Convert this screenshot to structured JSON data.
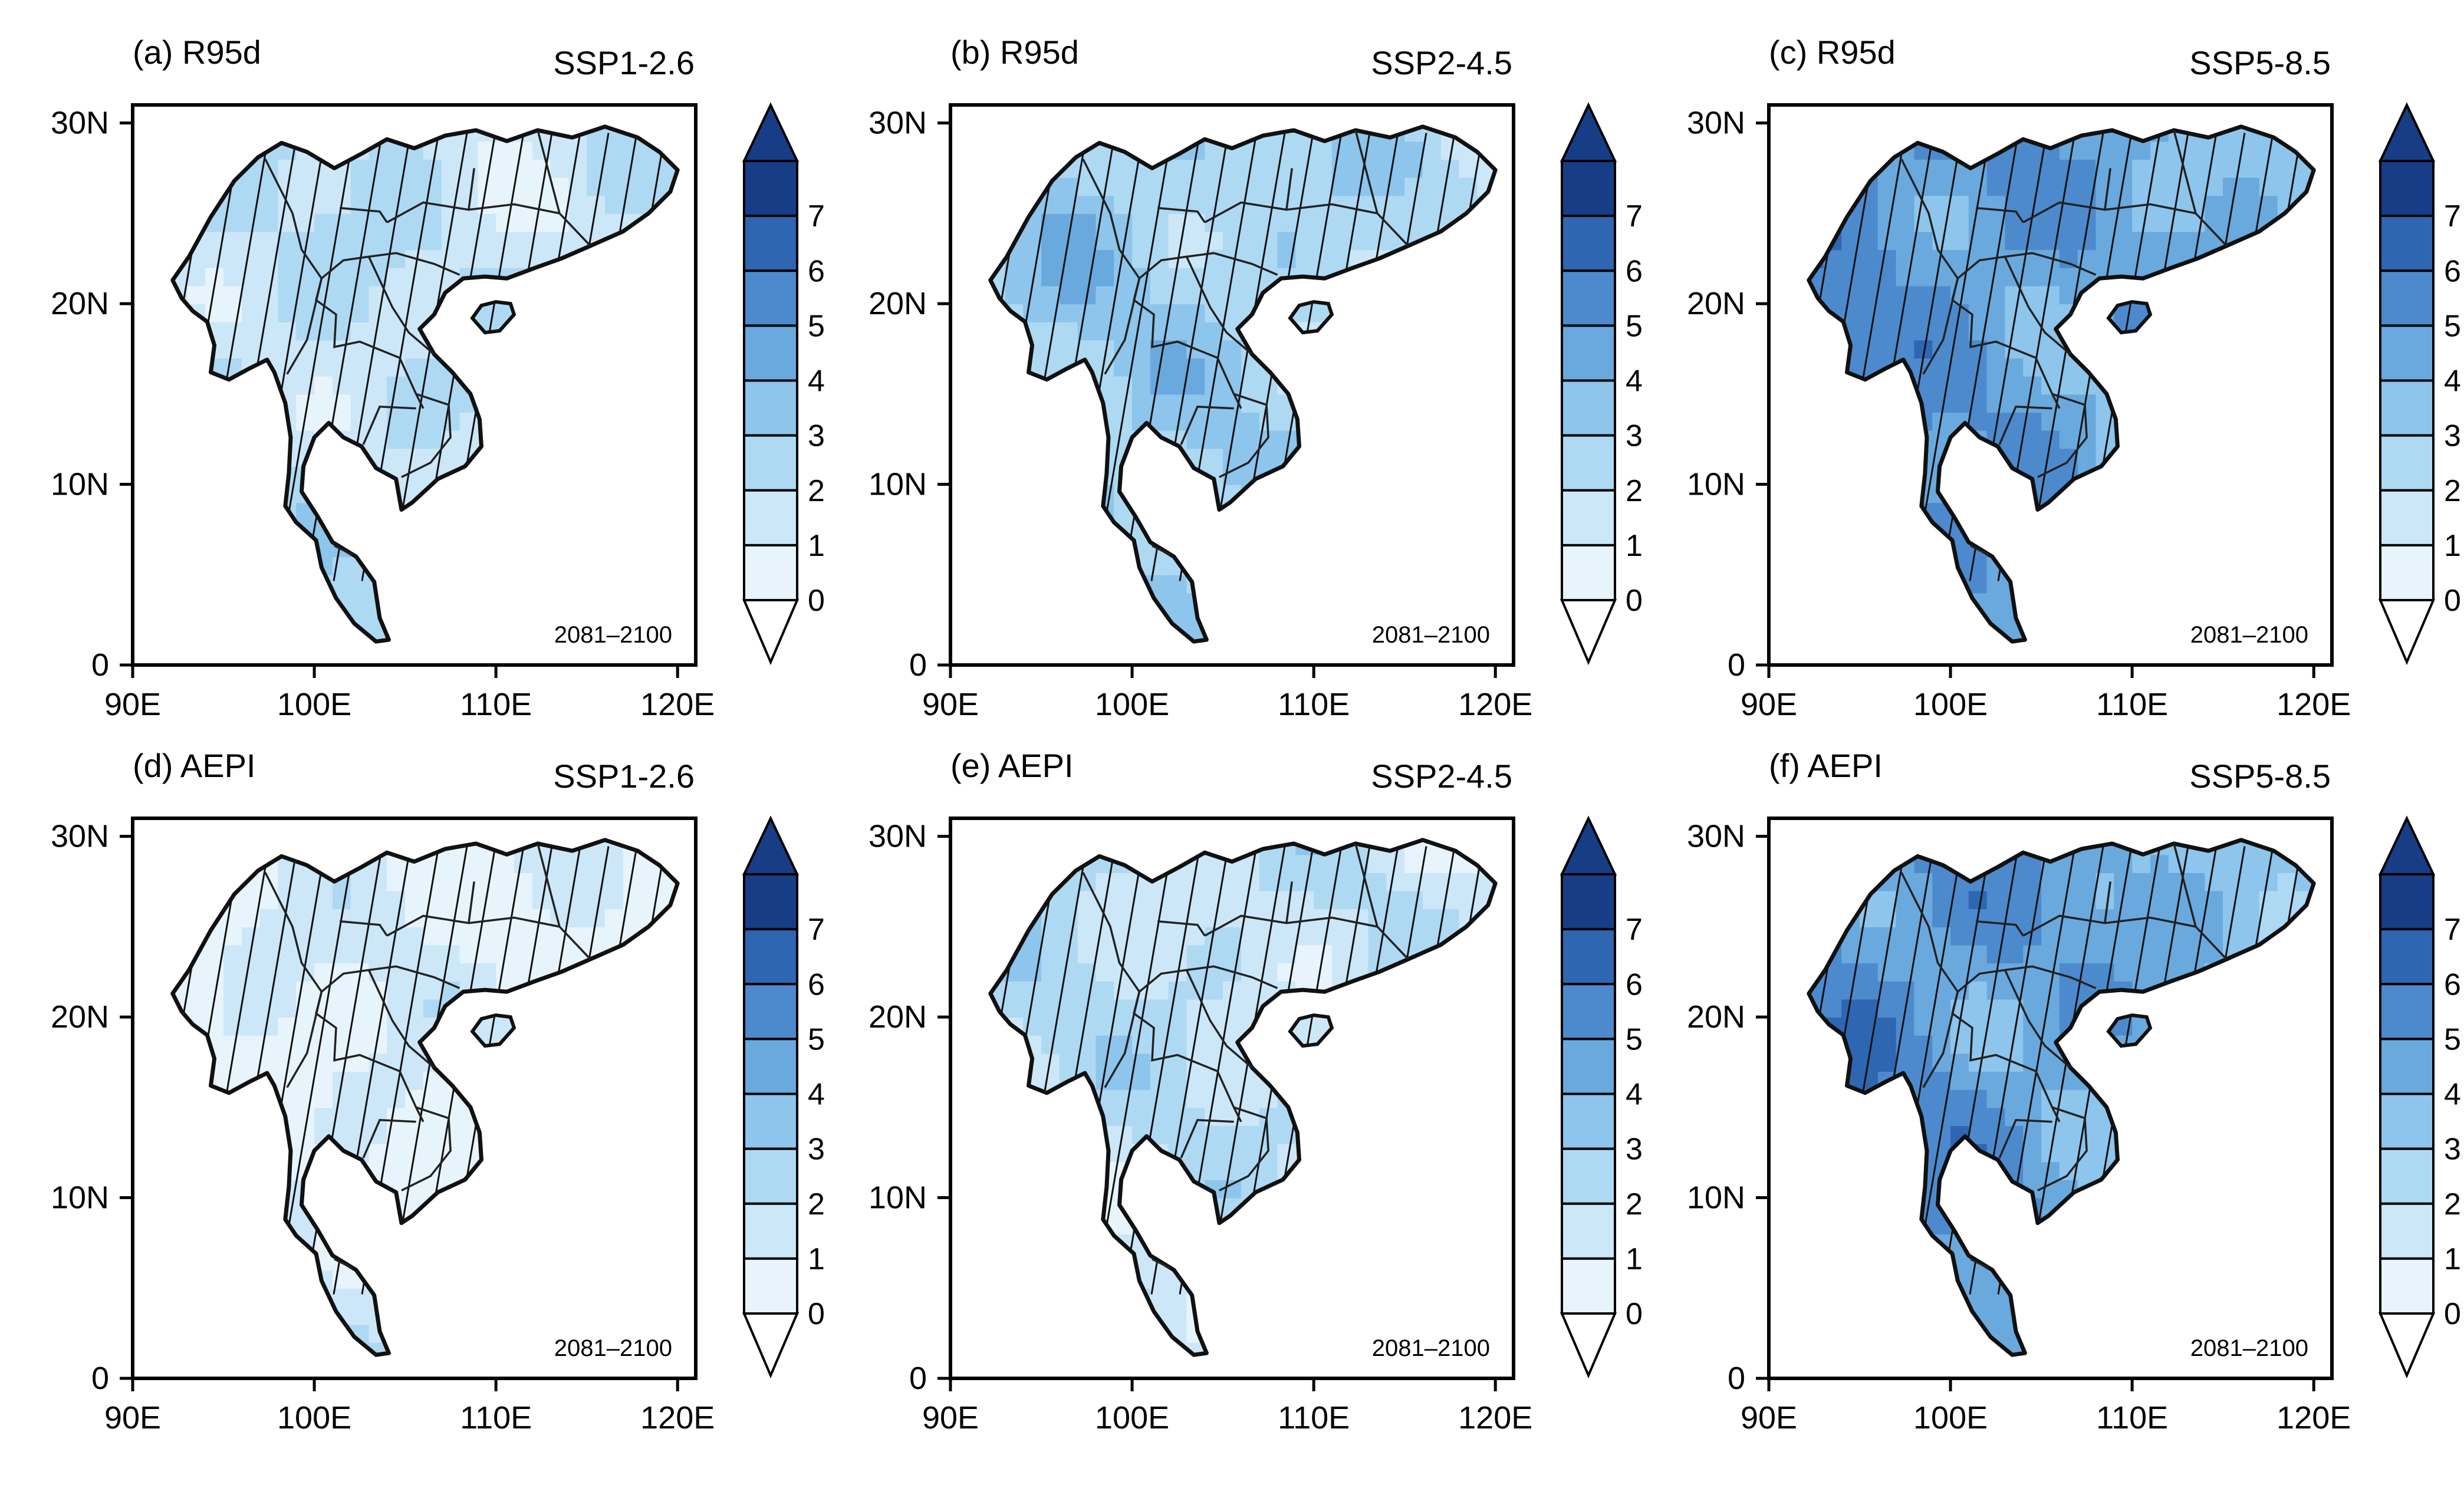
{
  "figure": {
    "color_scale": [
      "#e8f4fc",
      "#cce7f8",
      "#aed9f3",
      "#8dc5ec",
      "#6aa9de",
      "#4d8acd",
      "#2e66b2",
      "#173d86"
    ],
    "colorbar_ticks": [
      "0",
      "1",
      "2",
      "3",
      "4",
      "5",
      "6",
      "7"
    ],
    "x_ticks": [
      "90E",
      "100E",
      "110E",
      "120E"
    ],
    "y_ticks": [
      "0",
      "10N",
      "20N",
      "30N"
    ]
  },
  "panels": [
    {
      "label": "(a) R95d",
      "scenario": "SSP1-2.6",
      "period": "2081–2100",
      "intensity": 2
    },
    {
      "label": "(b) R95d",
      "scenario": "SSP2-4.5",
      "period": "2081–2100",
      "intensity": 3
    },
    {
      "label": "(c) R95d",
      "scenario": "SSP5-8.5",
      "period": "2081–2100",
      "intensity": 5
    },
    {
      "label": "(d) AEPI",
      "scenario": "SSP1-2.6",
      "period": "2081–2100",
      "intensity": 1
    },
    {
      "label": "(e) AEPI",
      "scenario": "SSP2-4.5",
      "period": "2081–2100",
      "intensity": 2
    },
    {
      "label": "(f) AEPI",
      "scenario": "SSP5-8.5",
      "period": "2081–2100",
      "intensity": 5
    }
  ]
}
